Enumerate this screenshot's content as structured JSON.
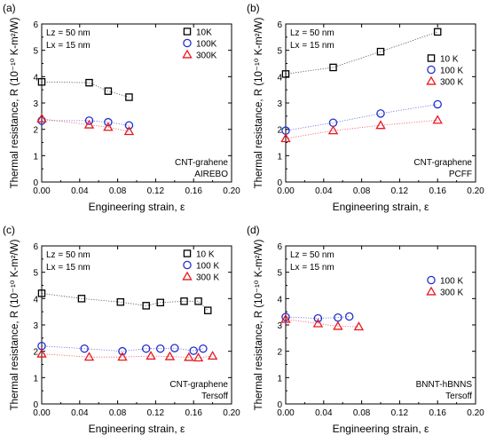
{
  "chart_data": [
    {
      "type": "scatter",
      "panel_label": "(a)",
      "xlabel": "Engineering strain, ε",
      "ylabel": "Thermal resistance, R (10⁻¹⁰ K-m²/W)",
      "xlim": [
        0.0,
        0.2
      ],
      "ylim": [
        0,
        6
      ],
      "xticks": [
        "0.00",
        "0.04",
        "0.08",
        "0.12",
        "0.16",
        "0.20"
      ],
      "yticks": [
        "0",
        "1",
        "2",
        "3",
        "4",
        "5",
        "6"
      ],
      "info": [
        "Lz = 50 nm",
        "Lx = 15 nm"
      ],
      "note": [
        "CNT-grahene",
        "AIREBO"
      ],
      "legend_position": "top-right",
      "series": [
        {
          "name": "10K",
          "marker": "square",
          "color": "#000000",
          "x": [
            0.0,
            0.05,
            0.07,
            0.092
          ],
          "y": [
            3.8,
            3.77,
            3.45,
            3.22
          ]
        },
        {
          "name": "100K",
          "marker": "circle",
          "color": "#1f2fd0",
          "x": [
            0.0,
            0.05,
            0.07,
            0.092
          ],
          "y": [
            2.33,
            2.33,
            2.27,
            2.15
          ]
        },
        {
          "name": "300K",
          "marker": "triangle",
          "color": "#e8191f",
          "x": [
            0.0,
            0.05,
            0.07,
            0.092
          ],
          "y": [
            2.4,
            2.17,
            2.08,
            1.92
          ]
        }
      ]
    },
    {
      "type": "scatter",
      "panel_label": "(b)",
      "xlabel": "Engineering strain, ε",
      "ylabel": "Thermal resistance, R (10⁻¹⁰ K-m²/W)",
      "xlim": [
        0.0,
        0.2
      ],
      "ylim": [
        0,
        6
      ],
      "xticks": [
        "0.00",
        "0.04",
        "0.08",
        "0.12",
        "0.16",
        "0.20"
      ],
      "yticks": [
        "0",
        "1",
        "2",
        "3",
        "4",
        "5",
        "6"
      ],
      "info": [
        "Lz = 50 nm",
        "Lx = 15 nm"
      ],
      "note": [
        "CNT-graphene",
        "PCFF"
      ],
      "legend_position": "right",
      "series": [
        {
          "name": "10 K",
          "marker": "square",
          "color": "#000000",
          "x": [
            0.0,
            0.05,
            0.1,
            0.16
          ],
          "y": [
            4.1,
            4.35,
            4.95,
            5.7
          ]
        },
        {
          "name": "100 K",
          "marker": "circle",
          "color": "#1f2fd0",
          "x": [
            0.0,
            0.05,
            0.1,
            0.16
          ],
          "y": [
            1.95,
            2.25,
            2.6,
            2.95
          ]
        },
        {
          "name": "300 K",
          "marker": "triangle",
          "color": "#e8191f",
          "x": [
            0.0,
            0.05,
            0.1,
            0.16
          ],
          "y": [
            1.65,
            1.95,
            2.15,
            2.35
          ]
        }
      ]
    },
    {
      "type": "scatter",
      "panel_label": "(c)",
      "xlabel": "Engineering strain, ε",
      "ylabel": "Thermal resistance, R (10⁻¹⁰ K-m²/W)",
      "xlim": [
        0.0,
        0.2
      ],
      "ylim": [
        0,
        6
      ],
      "xticks": [
        "0.00",
        "0.04",
        "0.08",
        "0.12",
        "0.16",
        "0.20"
      ],
      "yticks": [
        "0",
        "1",
        "2",
        "3",
        "4",
        "5",
        "6"
      ],
      "info": [
        "Lz = 50 nm",
        "Lx = 15 nm"
      ],
      "note": [
        "CNT-graphene",
        "Tersoff"
      ],
      "legend_position": "top-right",
      "series": [
        {
          "name": "10 K",
          "marker": "square",
          "color": "#000000",
          "x": [
            0.0,
            0.042,
            0.083,
            0.11,
            0.125,
            0.15,
            0.165,
            0.175
          ],
          "y": [
            4.2,
            4.0,
            3.87,
            3.73,
            3.85,
            3.9,
            3.9,
            3.55
          ]
        },
        {
          "name": "100 K",
          "marker": "circle",
          "color": "#1f2fd0",
          "x": [
            0.0,
            0.045,
            0.085,
            0.11,
            0.125,
            0.14,
            0.16,
            0.17
          ],
          "y": [
            2.2,
            2.1,
            2.0,
            2.1,
            2.1,
            2.12,
            2.02,
            2.1
          ]
        },
        {
          "name": "300 K",
          "marker": "triangle",
          "color": "#e8191f",
          "x": [
            0.0,
            0.05,
            0.085,
            0.115,
            0.135,
            0.155,
            0.165,
            0.18
          ],
          "y": [
            1.9,
            1.78,
            1.78,
            1.82,
            1.8,
            1.77,
            1.75,
            1.82
          ]
        }
      ]
    },
    {
      "type": "scatter",
      "panel_label": "(d)",
      "xlabel": "Engineering strain, ε",
      "ylabel": "Thermal resistance, R (10⁻¹⁰ K-m²/W)",
      "xlim": [
        0.0,
        0.2
      ],
      "ylim": [
        0,
        6
      ],
      "xticks": [
        "0.00",
        "0.04",
        "0.08",
        "0.12",
        "0.16",
        "0.20"
      ],
      "yticks": [
        "0",
        "1",
        "2",
        "3",
        "4",
        "5",
        "6"
      ],
      "info": [
        "Lz = 50 nm",
        "Lx = 15 nm"
      ],
      "note": [
        "BNNT-hBNNS",
        "Tersoff"
      ],
      "legend_position": "right",
      "series": [
        {
          "name": "100 K",
          "marker": "circle",
          "color": "#1f2fd0",
          "x": [
            0.0,
            0.034,
            0.055,
            0.067
          ],
          "y": [
            3.3,
            3.25,
            3.28,
            3.32
          ]
        },
        {
          "name": "300 K",
          "marker": "triangle",
          "color": "#e8191f",
          "x": [
            0.0,
            0.034,
            0.055,
            0.077
          ],
          "y": [
            3.22,
            3.05,
            2.95,
            2.93
          ]
        }
      ]
    }
  ]
}
